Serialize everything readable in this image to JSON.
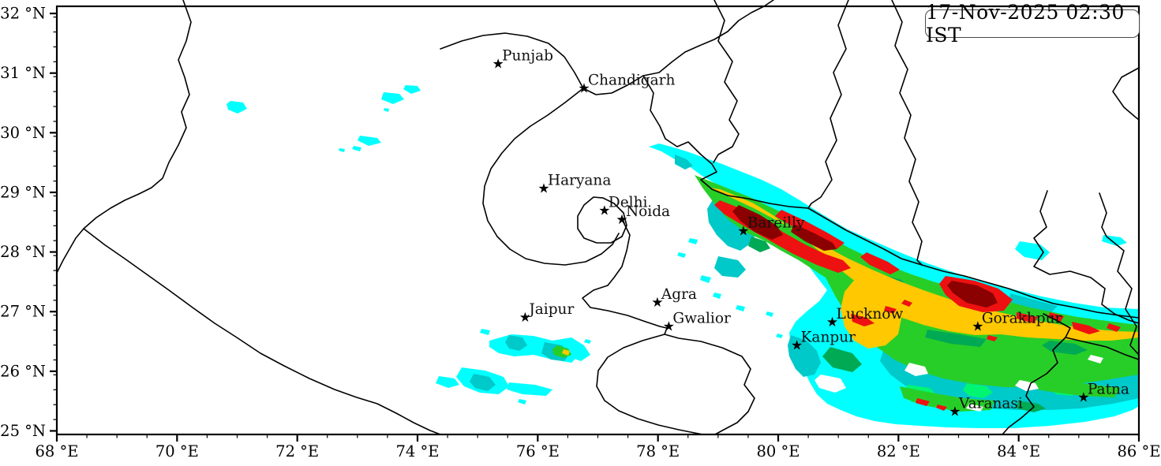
{
  "badge": {
    "timestamp": "17-Nov-2025 02:30 IST"
  },
  "map": {
    "extent": {
      "lon_min": 68,
      "lon_max": 86,
      "lat_min": 24.94,
      "lat_max": 32.12
    },
    "x_axis": {
      "unit": "°E",
      "major_ticks": [
        68,
        70,
        72,
        74,
        76,
        78,
        80,
        82,
        84,
        86
      ],
      "minor_step": 0.5
    },
    "y_axis": {
      "unit": "°N",
      "major_ticks": [
        32,
        31,
        30,
        29,
        28,
        27,
        26,
        25
      ],
      "minor_step": 0.25
    },
    "marker_glyph": "★",
    "cities": [
      {
        "name": "Punjab",
        "lon": 75.34,
        "lat": 31.16
      },
      {
        "name": "Chandigarh",
        "lon": 76.77,
        "lat": 30.75
      },
      {
        "name": "Haryana",
        "lon": 76.1,
        "lat": 29.07
      },
      {
        "name": "Delhi",
        "lon": 77.11,
        "lat": 28.7
      },
      {
        "name": "Noida",
        "lon": 77.4,
        "lat": 28.55
      },
      {
        "name": "Jaipur",
        "lon": 75.79,
        "lat": 26.91
      },
      {
        "name": "Agra",
        "lon": 77.99,
        "lat": 27.16
      },
      {
        "name": "Gwalior",
        "lon": 78.18,
        "lat": 26.76
      },
      {
        "name": "Bareilly",
        "lon": 79.42,
        "lat": 28.36
      },
      {
        "name": "Kanpur",
        "lon": 80.31,
        "lat": 26.44
      },
      {
        "name": "Lucknow",
        "lon": 80.9,
        "lat": 26.83
      },
      {
        "name": "Gorakhpur",
        "lon": 83.32,
        "lat": 26.76
      },
      {
        "name": "Varanasi",
        "lon": 82.94,
        "lat": 25.33
      },
      {
        "name": "Patna",
        "lon": 85.08,
        "lat": 25.57
      }
    ],
    "palette": [
      {
        "name": "cyan",
        "color": "#00FFFF"
      },
      {
        "name": "dark-cyan",
        "color": "#00C9C9"
      },
      {
        "name": "spring-green",
        "color": "#00F573"
      },
      {
        "name": "green",
        "color": "#28CE28"
      },
      {
        "name": "sea-green",
        "color": "#00AA55"
      },
      {
        "name": "yellow",
        "color": "#FFC800"
      },
      {
        "name": "red",
        "color": "#EE1111"
      },
      {
        "name": "dark-red",
        "color": "#8B0000"
      }
    ]
  }
}
